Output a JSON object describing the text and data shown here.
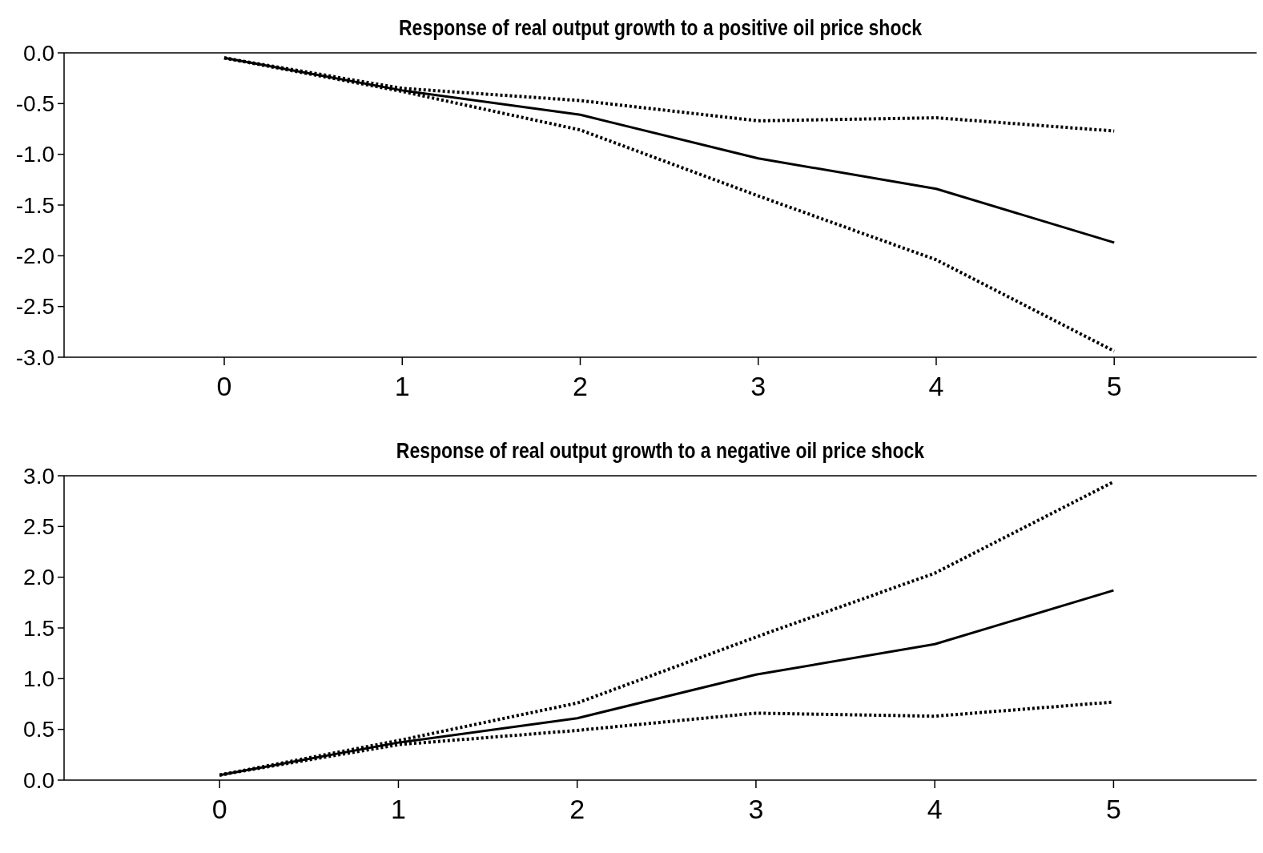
{
  "chart_data": [
    {
      "type": "line",
      "title": "Response of real output growth to a positive oil price shock",
      "x": [
        0,
        1,
        2,
        3,
        4,
        5
      ],
      "xlim": [
        -0.9,
        5.8
      ],
      "xticks": [
        0,
        1,
        2,
        3,
        4,
        5
      ],
      "ylim": [
        -3.0,
        0.0
      ],
      "yticks": [
        {
          "value": -3,
          "label": "-3.0"
        },
        {
          "value": -2.5,
          "label": "-2.5"
        },
        {
          "value": -2,
          "label": "-2.0"
        },
        {
          "value": -1.5,
          "label": "-1.5"
        },
        {
          "value": -1,
          "label": "-1.0"
        },
        {
          "value": -0.5,
          "label": "-0.5"
        },
        {
          "value": 0,
          "label": "0.0"
        }
      ],
      "series": [
        {
          "color": "#000000",
          "line_style": "solid",
          "values": [
            -0.05,
            -0.37,
            -0.61,
            -1.04,
            -1.34,
            -1.87
          ]
        },
        {
          "color": "#000000",
          "line_style": "dotted",
          "values": [
            -0.05,
            -0.35,
            -0.47,
            -0.67,
            -0.64,
            -0.77
          ]
        },
        {
          "color": "#000000",
          "line_style": "dotted",
          "values": [
            -0.05,
            -0.38,
            -0.76,
            -1.41,
            -2.04,
            -2.94
          ]
        }
      ]
    },
    {
      "type": "line",
      "title": "Response of real output growth to a negative oil price shock",
      "x": [
        0,
        1,
        2,
        3,
        4,
        5
      ],
      "xlim": [
        -0.87,
        5.8
      ],
      "xticks": [
        0,
        1,
        2,
        3,
        4,
        5
      ],
      "ylim": [
        0.0,
        3.0
      ],
      "yticks": [
        {
          "value": 0,
          "label": "0.0"
        },
        {
          "value": 0.5,
          "label": "0.5"
        },
        {
          "value": 1,
          "label": "1.0"
        },
        {
          "value": 1.5,
          "label": "1.5"
        },
        {
          "value": 2,
          "label": "2.0"
        },
        {
          "value": 2.5,
          "label": "2.5"
        },
        {
          "value": 3,
          "label": "3.0"
        }
      ],
      "series": [
        {
          "color": "#000000",
          "line_style": "solid",
          "values": [
            0.05,
            0.37,
            0.61,
            1.04,
            1.34,
            1.87
          ]
        },
        {
          "color": "#000000",
          "line_style": "dotted",
          "values": [
            0.05,
            0.39,
            0.76,
            1.41,
            2.04,
            2.94
          ]
        },
        {
          "color": "#000000",
          "line_style": "dotted",
          "values": [
            0.05,
            0.35,
            0.49,
            0.66,
            0.63,
            0.77
          ]
        }
      ]
    }
  ]
}
